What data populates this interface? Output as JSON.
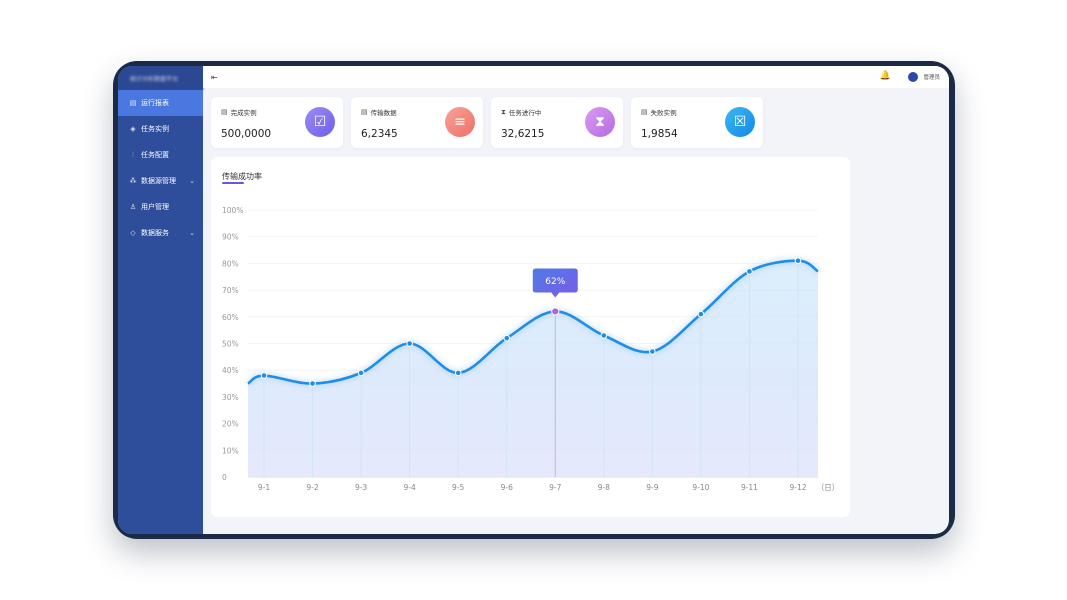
{
  "app": {
    "brand": "统计分析数据平台"
  },
  "sidebar": {
    "items": [
      {
        "label": "运行报表",
        "icon": "report-icon",
        "active": true
      },
      {
        "label": "任务实例",
        "icon": "layers-icon"
      },
      {
        "label": "任务配置",
        "icon": "sliders-icon"
      },
      {
        "label": "数据源管理",
        "icon": "network-icon",
        "expandable": true
      },
      {
        "label": "用户管理",
        "icon": "user-icon"
      },
      {
        "label": "数据服务",
        "icon": "shield-icon",
        "expandable": true
      }
    ]
  },
  "topbar": {
    "collapse_icon": "menu-collapse-icon",
    "bell_icon": "bell-icon",
    "user_name": "管理员"
  },
  "stats": [
    {
      "label": "完成实例",
      "value": "500,0000",
      "icon": "doc-check-icon",
      "color": "#7b6cf0"
    },
    {
      "label": "传输数据",
      "value": "6,2345",
      "icon": "database-icon",
      "color": "#f0857a"
    },
    {
      "label": "任务进行中",
      "value": "32,6215",
      "icon": "hourglass-icon",
      "color": "#c47ae6"
    },
    {
      "label": "失败实例",
      "value": "1,9854",
      "icon": "doc-fail-icon",
      "color": "#1f9cf0"
    }
  ],
  "panel": {
    "title": "传输成功率"
  },
  "chart_data": {
    "type": "area",
    "title": "传输成功率",
    "categories": [
      "9-1",
      "9-2",
      "9-3",
      "9-4",
      "9-5",
      "9-6",
      "9-7",
      "9-8",
      "9-9",
      "9-10",
      "9-11",
      "9-12"
    ],
    "values": [
      38,
      35,
      39,
      50,
      39,
      52,
      62,
      53,
      47,
      61,
      77,
      81
    ],
    "y_ticks": [
      "0",
      "10%",
      "20%",
      "30%",
      "40%",
      "50%",
      "60%",
      "70%",
      "80%",
      "90%",
      "100%"
    ],
    "ylim": [
      0,
      100
    ],
    "x_unit": "（日）",
    "highlight": {
      "index": 6,
      "label": "62%"
    },
    "colors": {
      "line": "#1f8ee6",
      "highlight": "#b062e6",
      "tooltip": "#5d66e8"
    }
  }
}
